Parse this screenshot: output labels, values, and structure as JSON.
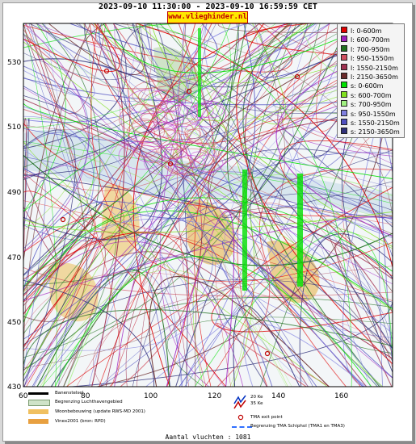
{
  "title": "2023-09-10 11:30:00 - 2023-09-10 16:59:59 CET",
  "site": "www.vlieghinder.nl",
  "axes": {
    "x_ticks": [
      "60",
      "80",
      "100",
      "120",
      "140",
      "160"
    ],
    "y_ticks": [
      "530",
      "510",
      "490",
      "470",
      "450",
      "430"
    ]
  },
  "legend": [
    {
      "label": "l: 0-600m",
      "color": "#e00000"
    },
    {
      "label": "l: 600-700m",
      "color": "#a020c0"
    },
    {
      "label": "l: 700-950m",
      "color": "#207020"
    },
    {
      "label": "l: 950-1550m",
      "color": "#d05060"
    },
    {
      "label": "l: 1550-2150m",
      "color": "#a03050"
    },
    {
      "label": "l: 2150-3650m",
      "color": "#6a2a2a"
    },
    {
      "label": "s: 0-600m",
      "color": "#00e000"
    },
    {
      "label": "s: 600-700m",
      "color": "#80e020"
    },
    {
      "label": "s: 700-950m",
      "color": "#a0f080"
    },
    {
      "label": "s: 950-1550m",
      "color": "#8080e0"
    },
    {
      "label": "s: 1550-2150m",
      "color": "#5050c0"
    },
    {
      "label": "s: 2150-3650m",
      "color": "#30307a"
    }
  ],
  "bottom_legend": {
    "runway": "Banenstelsel",
    "airport_boundary": "Begrenzing Luchthavengebied",
    "housing": "Woonbebouwing (update RWS-MD 2001)",
    "vinex": "Vinex2001 (bron: RPD)",
    "ke20": "20 Ke",
    "ke35": "35 Ke",
    "tma_exit": "TMA exit point",
    "tma_boundary": "Begrenzing TMA Schiphol  (TMA1 en TMA3)"
  },
  "flight_count": "Aantal vluchten : 1081"
}
